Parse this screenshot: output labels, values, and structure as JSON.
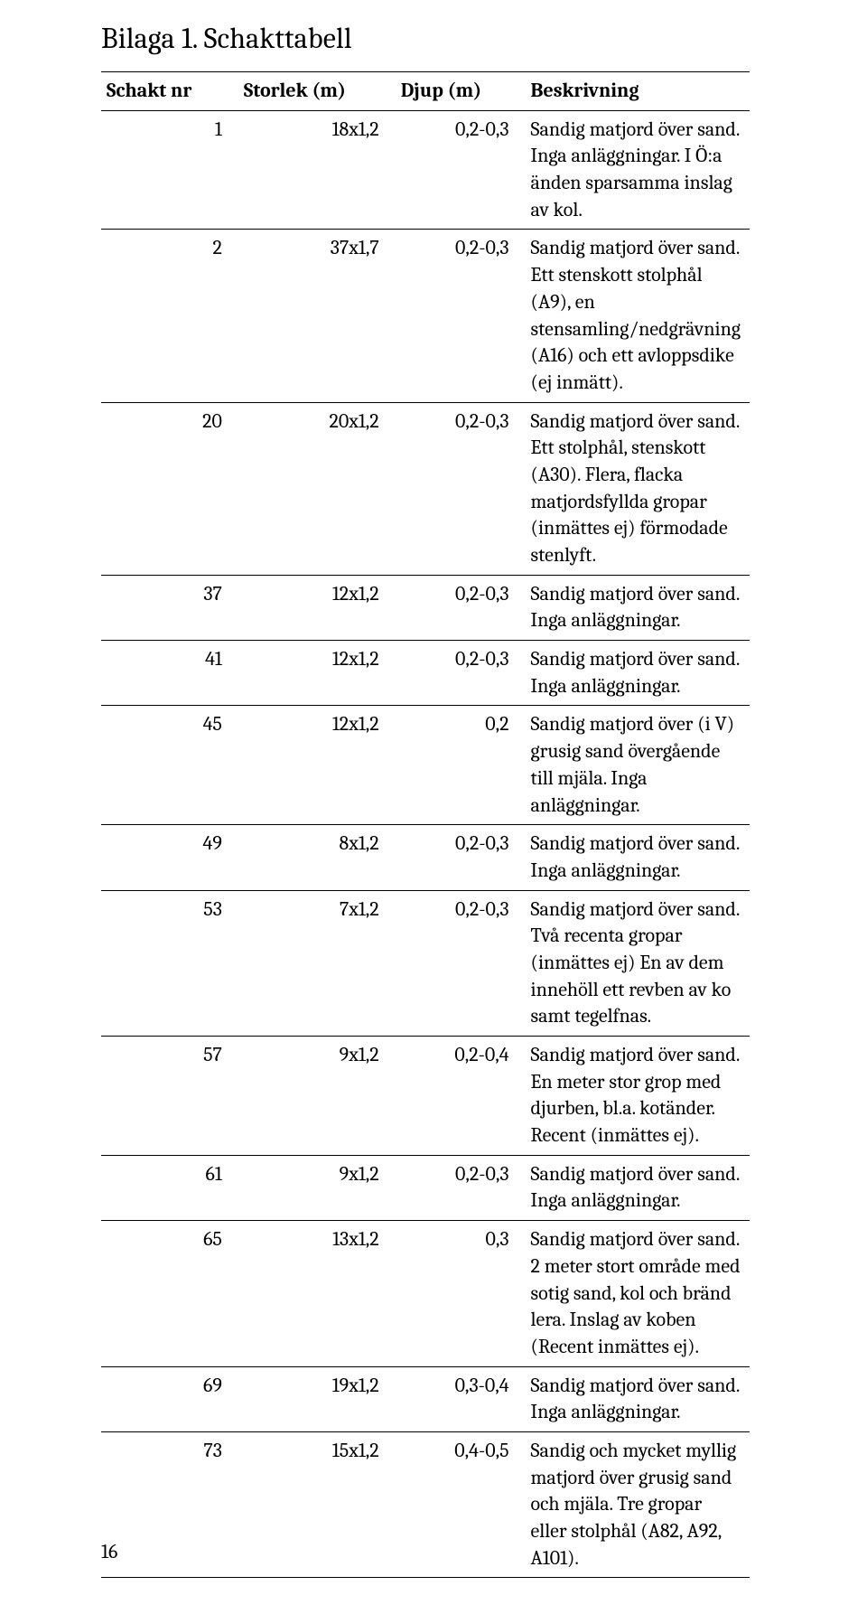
{
  "title": "Bilaga 1. Schakttabell",
  "page_number": "16",
  "table": {
    "columns": [
      "Schakt nr",
      "Storlek (m)",
      "Djup (m)",
      "Beskrivning"
    ],
    "col_align": [
      "right",
      "right",
      "right",
      "left"
    ],
    "header_align": [
      "left",
      "left",
      "left",
      "left"
    ],
    "col_widths_pct": [
      18,
      21,
      17,
      44
    ],
    "border_color": "#000000",
    "header_border_width": 1.5,
    "row_border_width": 1,
    "font_size_pt": 16,
    "header_font_weight": 700,
    "rows": [
      [
        "1",
        "18x1,2",
        "0,2-0,3",
        "Sandig matjord över sand. Inga anläggningar. I Ö:a änden sparsamma inslag av kol."
      ],
      [
        "2",
        "37x1,7",
        "0,2-0,3",
        "Sandig matjord över sand. Ett stenskott stolphål (A9), en stensamling/nedgrävning (A16) och ett avloppsdike (ej inmätt)."
      ],
      [
        "20",
        "20x1,2",
        "0,2-0,3",
        "Sandig matjord över sand. Ett stolphål, stenskott (A30). Flera, flacka matjordsfyllda gropar (inmättes ej) förmodade stenlyft."
      ],
      [
        "37",
        "12x1,2",
        "0,2-0,3",
        "Sandig matjord över sand. Inga anläggningar."
      ],
      [
        "41",
        "12x1,2",
        "0,2-0,3",
        "Sandig matjord över sand. Inga anläggningar."
      ],
      [
        "45",
        "12x1,2",
        "0,2",
        "Sandig matjord över (i V) grusig sand övergående till mjäla. Inga anläggningar."
      ],
      [
        "49",
        "8x1,2",
        "0,2-0,3",
        "Sandig matjord över sand. Inga anläggningar."
      ],
      [
        "53",
        "7x1,2",
        "0,2-0,3",
        "Sandig matjord över sand. Två recenta gropar (inmättes ej) En av dem innehöll ett revben av ko samt tegelfnas."
      ],
      [
        "57",
        "9x1,2",
        "0,2-0,4",
        "Sandig matjord över sand. En meter stor grop med djurben, bl.a. kotänder. Recent (inmättes ej)."
      ],
      [
        "61",
        "9x1,2",
        "0,2-0,3",
        "Sandig matjord över sand. Inga anläggningar."
      ],
      [
        "65",
        "13x1,2",
        "0,3",
        "Sandig matjord över sand. 2 meter stort område med sotig sand, kol och bränd lera. Inslag av koben (Recent inmättes ej)."
      ],
      [
        "69",
        "19x1,2",
        "0,3-0,4",
        "Sandig matjord över sand. Inga anläggningar."
      ],
      [
        "73",
        "15x1,2",
        "0,4-0,5",
        "Sandig och mycket myllig matjord över grusig sand och mjäla. Tre gropar eller stolphål (A82, A92, A101)."
      ]
    ]
  },
  "colors": {
    "background": "#ffffff",
    "text": "#000000"
  },
  "typography": {
    "title_font_size_pt": 24,
    "title_font_weight": 400,
    "body_font_family": "Cambria, 'Times New Roman', Georgia, serif"
  }
}
